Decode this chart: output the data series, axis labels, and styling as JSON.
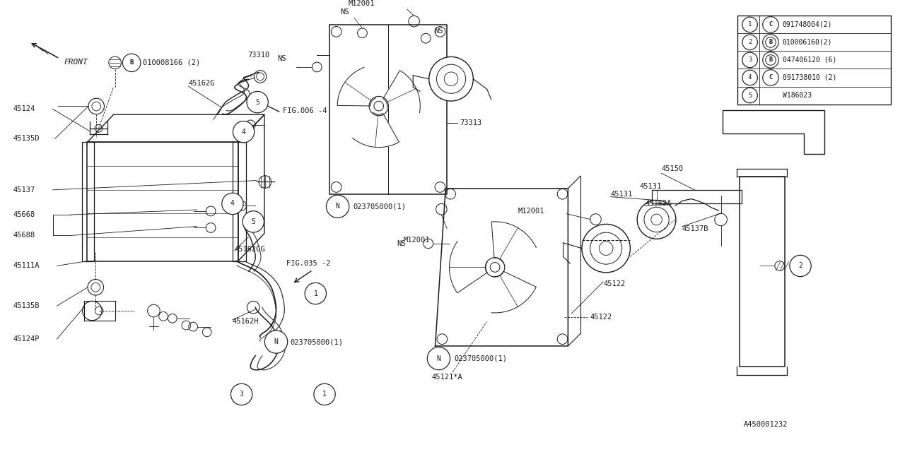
{
  "bg_color": "#ffffff",
  "line_color": "#1a1a1a",
  "fig_width": 12.8,
  "fig_height": 6.4,
  "legend_items": [
    {
      "num": "1",
      "circle_type": "C",
      "part": "091748004(2)"
    },
    {
      "num": "2",
      "circle_type": "B",
      "part": "010006160(2)"
    },
    {
      "num": "3",
      "circle_type": "B",
      "part": "047406120 (6)"
    },
    {
      "num": "4",
      "circle_type": "C",
      "part": "091738010 (2)"
    },
    {
      "num": "5",
      "circle_type": "",
      "part": "W186023"
    }
  ]
}
